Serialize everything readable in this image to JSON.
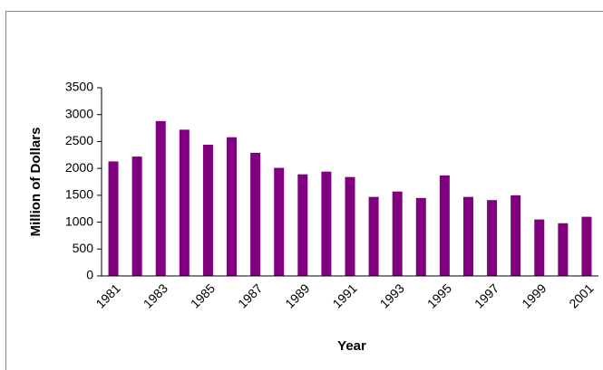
{
  "chart_data": {
    "type": "bar",
    "x_label": "Year",
    "y_label": "Million of Dollars",
    "categories": [
      "1981",
      null,
      "1983",
      null,
      "1985",
      null,
      "1987",
      null,
      "1989",
      null,
      "1991",
      null,
      "1993",
      null,
      "1995",
      null,
      "1997",
      null,
      "1999",
      null,
      "2001"
    ],
    "values": [
      2130,
      2220,
      2880,
      2720,
      2440,
      2580,
      2290,
      2010,
      1890,
      1940,
      1840,
      1470,
      1570,
      1450,
      1870,
      1470,
      1410,
      1500,
      1050,
      980,
      1100
    ],
    "color": "#800080",
    "ylim": [
      0,
      3500
    ],
    "yticks": [
      0,
      500,
      1000,
      1500,
      2000,
      2500,
      3000,
      3500
    ],
    "grid": false
  }
}
